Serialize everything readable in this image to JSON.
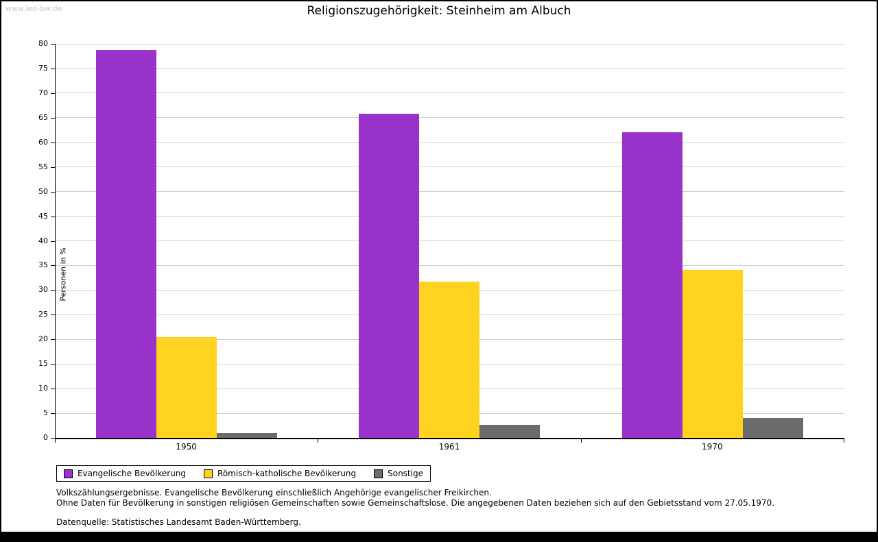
{
  "page": {
    "watermark": "www.leo-bw.de",
    "title": "Religionszugehörigkeit: Steinheim am Albuch",
    "footer": {
      "line1": "Volkszählungsergebnisse. Evangelische Bevölkerung einschließlich Angehörige evangelischer Freikirchen.",
      "line2": "Ohne Daten für Bevölkerung in sonstigen religiösen Gemeinschaften sowie Gemeinschaftslose. Die angegebenen Daten beziehen sich auf den Gebietsstand vom 27.05.1970.",
      "source": "Datenquelle: Statistisches Landesamt Baden-Württemberg."
    }
  },
  "chart_data": {
    "type": "bar",
    "title": "Religionszugehörigkeit: Steinheim am Albuch",
    "categories": [
      "1950",
      "1961",
      "1970"
    ],
    "series": [
      {
        "name": "Evangelische Bevölkerung",
        "color": "#9933cc",
        "values": [
          78.7,
          65.8,
          62.1
        ]
      },
      {
        "name": "Römisch-katholische Bevölkerung",
        "color": "#ffd320",
        "values": [
          20.4,
          31.7,
          34.1
        ]
      },
      {
        "name": "Sonstige",
        "color": "#6b6b6b",
        "values": [
          1.0,
          2.6,
          4.0
        ]
      }
    ],
    "xlabel": "",
    "ylabel": "Personen in %",
    "ylim": [
      0,
      80
    ],
    "ytick_step": 5,
    "grid": true,
    "legend_position": "bottom-left"
  }
}
